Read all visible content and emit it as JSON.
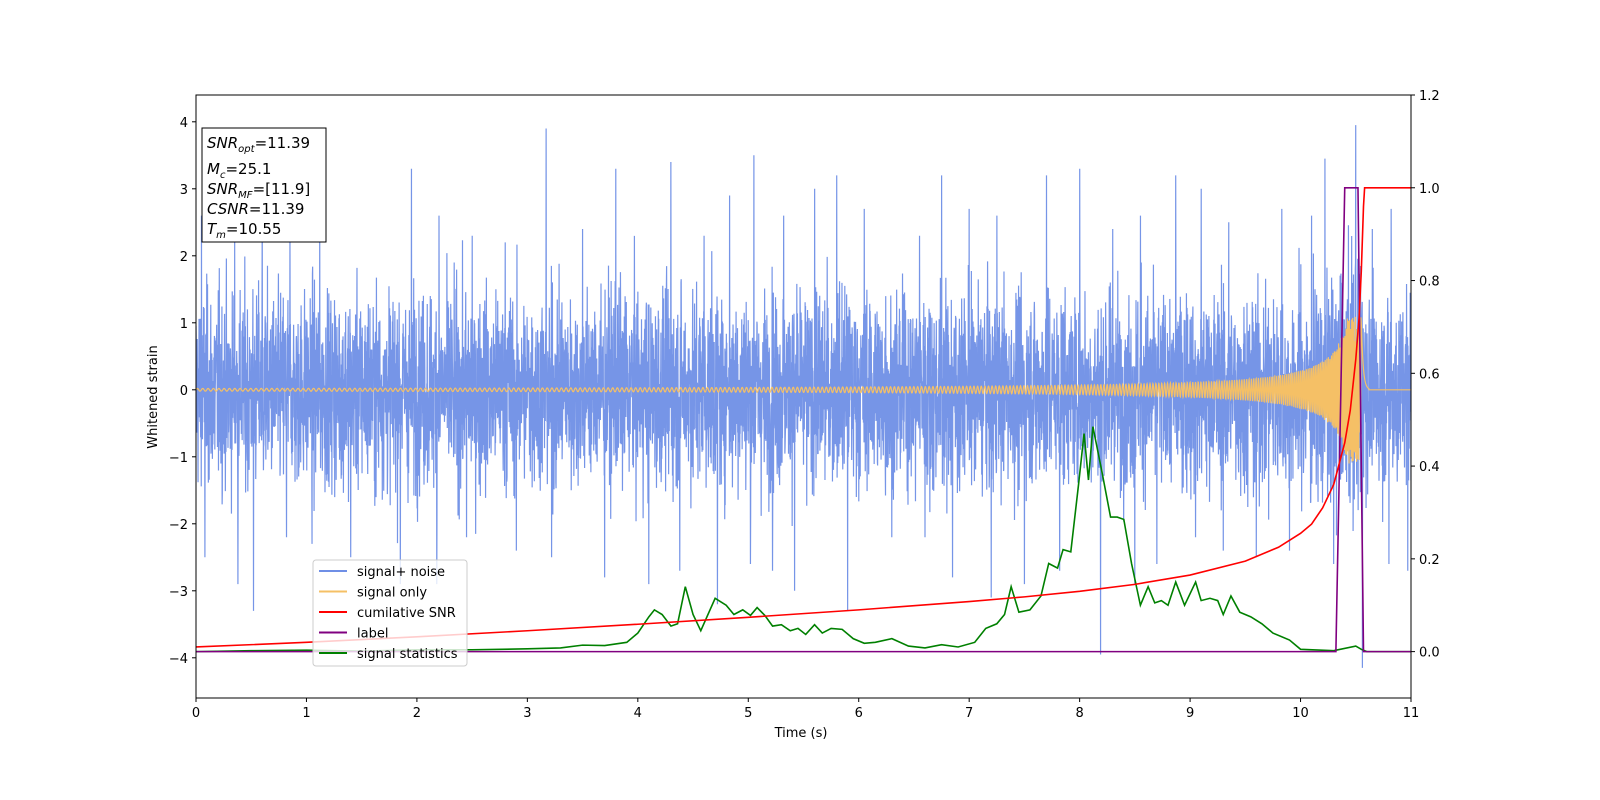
{
  "chart_data": {
    "type": "line",
    "xlabel": "Time (s)",
    "ylabel": "Whitened strain",
    "xlim": [
      0,
      11
    ],
    "ylim": [
      -4.6,
      4.4
    ],
    "y2lim": [
      -0.1,
      1.2
    ],
    "xticks": [
      "0",
      "1",
      "2",
      "3",
      "4",
      "5",
      "6",
      "7",
      "8",
      "9",
      "10",
      "11"
    ],
    "yticks": [
      "−4",
      "−3",
      "−2",
      "−1",
      "0",
      "1",
      "2",
      "3",
      "4"
    ],
    "y2ticks": [
      "0.0",
      "0.2",
      "0.4",
      "0.6",
      "0.8",
      "1.0",
      "1.2"
    ],
    "grid": false,
    "legend_position": "lower-left",
    "info_box": {
      "lines": [
        {
          "var": "SNR",
          "sub": "opt",
          "value": "=11.39"
        },
        {
          "var": "M",
          "sub": "c",
          "value": "=25.1"
        },
        {
          "var": "SNR",
          "sub": "MF",
          "value": "=[11.9]"
        },
        {
          "var": "CSNR",
          "sub": "",
          "value": "=11.39"
        },
        {
          "var": "T",
          "sub": "m",
          "value": "=10.55"
        }
      ]
    },
    "series": [
      {
        "name": "signal+ noise",
        "axis": "left",
        "color": "#6f8fe6",
        "description_range": {
          "typical_min": -1.9,
          "typical_max": 2.2,
          "peak_max": 3.95,
          "peak_min": -4.15
        },
        "spikes_up": [
          [
            0.05,
            2.6
          ],
          [
            0.35,
            2.2
          ],
          [
            0.6,
            2.6
          ],
          [
            0.85,
            2.4
          ],
          [
            1.12,
            2.5
          ],
          [
            1.4,
            2.4
          ],
          [
            1.95,
            3.3
          ],
          [
            2.2,
            2.6
          ],
          [
            2.5,
            2.3
          ],
          [
            2.8,
            2.2
          ],
          [
            3.17,
            3.9
          ],
          [
            3.5,
            2.4
          ],
          [
            3.8,
            3.3
          ],
          [
            4.1,
            2.5
          ],
          [
            4.3,
            3.4
          ],
          [
            4.6,
            2.3
          ],
          [
            4.83,
            2.9
          ],
          [
            5.05,
            3.5
          ],
          [
            5.32,
            2.6
          ],
          [
            5.6,
            3.0
          ],
          [
            5.8,
            3.2
          ],
          [
            6.05,
            2.7
          ],
          [
            6.3,
            3.4
          ],
          [
            6.55,
            2.3
          ],
          [
            6.75,
            3.2
          ],
          [
            7.0,
            2.7
          ],
          [
            7.25,
            2.6
          ],
          [
            7.5,
            2.9
          ],
          [
            7.7,
            3.2
          ],
          [
            8.0,
            3.3
          ],
          [
            8.3,
            2.4
          ],
          [
            8.55,
            2.6
          ],
          [
            8.87,
            3.2
          ],
          [
            9.1,
            3.0
          ],
          [
            9.35,
            2.5
          ],
          [
            9.6,
            3.0
          ],
          [
            9.83,
            2.7
          ],
          [
            10.1,
            2.6
          ],
          [
            10.22,
            3.45
          ],
          [
            10.5,
            3.95
          ],
          [
            10.65,
            2.4
          ],
          [
            10.82,
            2.7
          ],
          [
            10.97,
            2.3
          ]
        ],
        "spikes_down": [
          [
            0.08,
            -2.5
          ],
          [
            0.38,
            -2.9
          ],
          [
            0.52,
            -3.3
          ],
          [
            0.82,
            -2.2
          ],
          [
            1.05,
            -2.3
          ],
          [
            1.4,
            -2.5
          ],
          [
            1.85,
            -2.9
          ],
          [
            2.18,
            -2.9
          ],
          [
            2.45,
            -2.2
          ],
          [
            2.9,
            -2.4
          ],
          [
            3.22,
            -2.5
          ],
          [
            3.7,
            -2.8
          ],
          [
            4.1,
            -2.9
          ],
          [
            4.38,
            -2.7
          ],
          [
            4.72,
            -3.2
          ],
          [
            5.02,
            -2.6
          ],
          [
            5.22,
            -2.7
          ],
          [
            5.42,
            -3.0
          ],
          [
            5.9,
            -3.3
          ],
          [
            6.3,
            -2.2
          ],
          [
            6.6,
            -2.2
          ],
          [
            6.85,
            -2.8
          ],
          [
            7.2,
            -3.1
          ],
          [
            7.5,
            -2.9
          ],
          [
            7.82,
            -2.7
          ],
          [
            8.19,
            -3.95
          ],
          [
            8.5,
            -2.9
          ],
          [
            8.7,
            -2.6
          ],
          [
            9.05,
            -2.2
          ],
          [
            9.3,
            -2.4
          ],
          [
            9.6,
            -2.5
          ],
          [
            9.9,
            -2.4
          ],
          [
            10.3,
            -2.6
          ],
          [
            10.56,
            -4.15
          ],
          [
            10.8,
            -2.6
          ],
          [
            10.97,
            -2.7
          ]
        ]
      },
      {
        "name": "signal only",
        "axis": "left",
        "color": "#f5c066",
        "chirp": {
          "t_merger": 10.55,
          "base_amplitude": 0.02,
          "peak_amplitude": 1.1,
          "ringdown_end": 10.62
        }
      },
      {
        "name": "cumilative SNR",
        "axis": "right",
        "color": "#ff0000",
        "points": [
          [
            0,
            0.01
          ],
          [
            1,
            0.02
          ],
          [
            2,
            0.032
          ],
          [
            3,
            0.045
          ],
          [
            4,
            0.059
          ],
          [
            5,
            0.074
          ],
          [
            6,
            0.09
          ],
          [
            7,
            0.108
          ],
          [
            7.5,
            0.118
          ],
          [
            8,
            0.13
          ],
          [
            8.5,
            0.145
          ],
          [
            9,
            0.165
          ],
          [
            9.5,
            0.195
          ],
          [
            9.8,
            0.225
          ],
          [
            10,
            0.255
          ],
          [
            10.1,
            0.275
          ],
          [
            10.2,
            0.31
          ],
          [
            10.3,
            0.36
          ],
          [
            10.4,
            0.45
          ],
          [
            10.45,
            0.52
          ],
          [
            10.5,
            0.63
          ],
          [
            10.53,
            0.72
          ],
          [
            10.55,
            0.82
          ],
          [
            10.57,
            0.96
          ],
          [
            10.58,
            1.0
          ],
          [
            11,
            1.0
          ]
        ]
      },
      {
        "name": "label",
        "axis": "right",
        "color": "#800080",
        "points": [
          [
            0,
            0
          ],
          [
            10.32,
            0
          ],
          [
            10.4,
            1
          ],
          [
            10.52,
            1
          ],
          [
            10.57,
            0
          ],
          [
            11,
            0
          ]
        ]
      },
      {
        "name": "signal statistics",
        "axis": "right",
        "color": "#008000",
        "points": [
          [
            0,
            0
          ],
          [
            0.5,
            0.002
          ],
          [
            1,
            0.003
          ],
          [
            1.5,
            0.001
          ],
          [
            2,
            0.004
          ],
          [
            2.5,
            0.004
          ],
          [
            3,
            0.006
          ],
          [
            3.3,
            0.008
          ],
          [
            3.5,
            0.014
          ],
          [
            3.7,
            0.013
          ],
          [
            3.9,
            0.02
          ],
          [
            4.0,
            0.04
          ],
          [
            4.1,
            0.075
          ],
          [
            4.15,
            0.09
          ],
          [
            4.22,
            0.08
          ],
          [
            4.3,
            0.055
          ],
          [
            4.36,
            0.06
          ],
          [
            4.43,
            0.14
          ],
          [
            4.5,
            0.08
          ],
          [
            4.57,
            0.045
          ],
          [
            4.7,
            0.115
          ],
          [
            4.8,
            0.1
          ],
          [
            4.87,
            0.08
          ],
          [
            4.95,
            0.09
          ],
          [
            5.02,
            0.078
          ],
          [
            5.08,
            0.095
          ],
          [
            5.15,
            0.078
          ],
          [
            5.22,
            0.055
          ],
          [
            5.3,
            0.058
          ],
          [
            5.38,
            0.045
          ],
          [
            5.45,
            0.05
          ],
          [
            5.52,
            0.037
          ],
          [
            5.6,
            0.058
          ],
          [
            5.67,
            0.04
          ],
          [
            5.75,
            0.05
          ],
          [
            5.85,
            0.048
          ],
          [
            5.95,
            0.028
          ],
          [
            6.05,
            0.018
          ],
          [
            6.15,
            0.02
          ],
          [
            6.3,
            0.028
          ],
          [
            6.45,
            0.012
          ],
          [
            6.6,
            0.008
          ],
          [
            6.75,
            0.015
          ],
          [
            6.9,
            0.01
          ],
          [
            7.05,
            0.02
          ],
          [
            7.15,
            0.05
          ],
          [
            7.25,
            0.06
          ],
          [
            7.32,
            0.08
          ],
          [
            7.38,
            0.14
          ],
          [
            7.45,
            0.085
          ],
          [
            7.55,
            0.09
          ],
          [
            7.65,
            0.12
          ],
          [
            7.72,
            0.19
          ],
          [
            7.8,
            0.18
          ],
          [
            7.85,
            0.22
          ],
          [
            7.92,
            0.215
          ],
          [
            7.99,
            0.36
          ],
          [
            8.04,
            0.47
          ],
          [
            8.08,
            0.37
          ],
          [
            8.12,
            0.485
          ],
          [
            8.2,
            0.39
          ],
          [
            8.28,
            0.29
          ],
          [
            8.34,
            0.29
          ],
          [
            8.4,
            0.285
          ],
          [
            8.47,
            0.19
          ],
          [
            8.55,
            0.1
          ],
          [
            8.62,
            0.14
          ],
          [
            8.68,
            0.105
          ],
          [
            8.74,
            0.11
          ],
          [
            8.8,
            0.1
          ],
          [
            8.87,
            0.15
          ],
          [
            8.95,
            0.1
          ],
          [
            9.05,
            0.15
          ],
          [
            9.1,
            0.11
          ],
          [
            9.18,
            0.115
          ],
          [
            9.25,
            0.11
          ],
          [
            9.3,
            0.08
          ],
          [
            9.37,
            0.12
          ],
          [
            9.45,
            0.085
          ],
          [
            9.55,
            0.075
          ],
          [
            9.65,
            0.06
          ],
          [
            9.75,
            0.04
          ],
          [
            9.9,
            0.025
          ],
          [
            10.0,
            0.005
          ],
          [
            10.3,
            0.002
          ],
          [
            10.5,
            0.012
          ],
          [
            10.55,
            0.005
          ],
          [
            10.6,
            0.0
          ],
          [
            11,
            0
          ]
        ]
      }
    ]
  }
}
